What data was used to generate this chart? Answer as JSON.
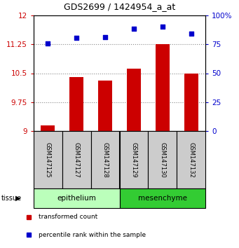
{
  "title": "GDS2699 / 1424954_a_at",
  "categories": [
    "GSM147125",
    "GSM147127",
    "GSM147128",
    "GSM147129",
    "GSM147130",
    "GSM147132"
  ],
  "bar_values": [
    9.15,
    10.4,
    10.3,
    10.62,
    11.25,
    10.5
  ],
  "scatter_values": [
    75.5,
    80.5,
    81.5,
    88.5,
    90.5,
    84.0
  ],
  "bar_color": "#cc0000",
  "scatter_color": "#0000cc",
  "ylim_left": [
    9,
    12
  ],
  "ylim_right": [
    0,
    100
  ],
  "yticks_left": [
    9,
    9.75,
    10.5,
    11.25,
    12
  ],
  "yticks_right": [
    0,
    25,
    50,
    75,
    100
  ],
  "ytick_labels_right": [
    "0",
    "25",
    "50",
    "75",
    "100%"
  ],
  "epi_color": "#bbffbb",
  "meso_color": "#33cc33",
  "sample_box_color": "#cccccc",
  "legend_items": [
    {
      "label": "transformed count",
      "color": "#cc0000"
    },
    {
      "label": "percentile rank within the sample",
      "color": "#0000cc"
    }
  ],
  "grid_color": "#888888",
  "left_tick_color": "#cc0000",
  "right_tick_color": "#0000cc"
}
